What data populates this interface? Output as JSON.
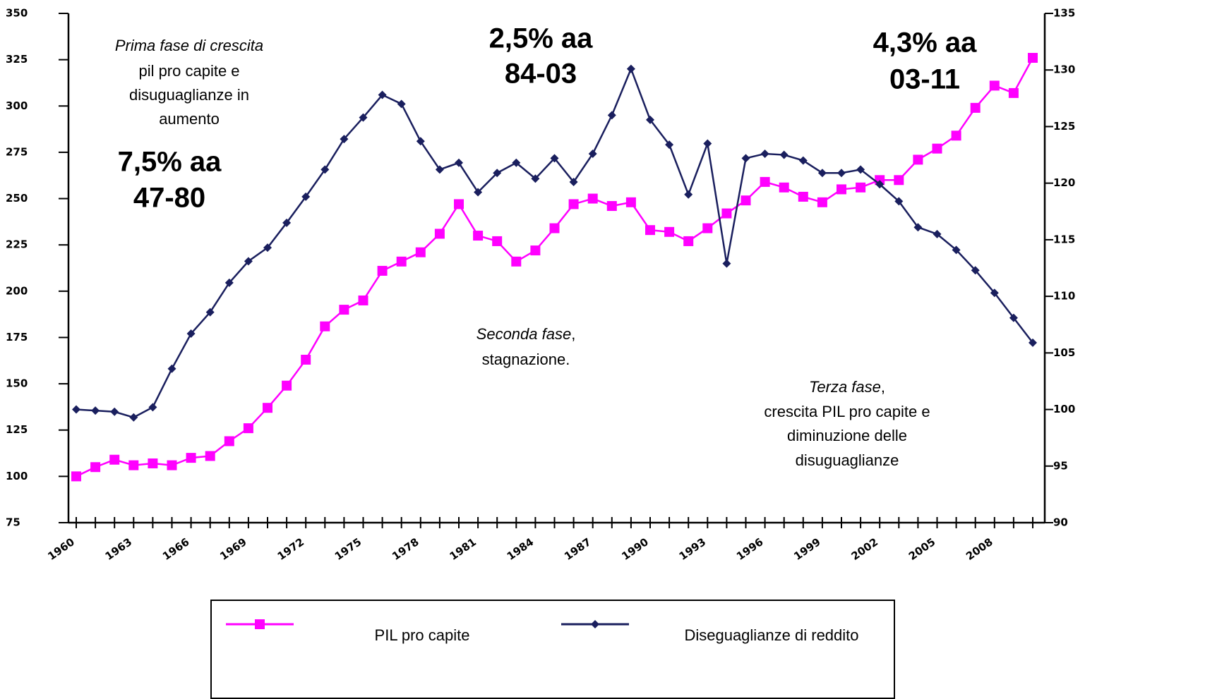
{
  "chart_data": {
    "type": "line",
    "categories": [
      "1960",
      null,
      null,
      "1963",
      null,
      null,
      "1966",
      null,
      null,
      "1969",
      null,
      null,
      "1972",
      null,
      null,
      "1975",
      null,
      null,
      "1978",
      null,
      null,
      "1981",
      null,
      null,
      "1984",
      null,
      null,
      "1987",
      null,
      null,
      "1990",
      null,
      null,
      "1993",
      null,
      null,
      "1996",
      null,
      null,
      "1999",
      null,
      null,
      "2002",
      null,
      null,
      "2005",
      null,
      null,
      "2008",
      null,
      null
    ],
    "series": [
      {
        "name": "PIL pro capite",
        "color": "#ff00ff",
        "marker": "square",
        "values": [
          100,
          105,
          109,
          106,
          107,
          106,
          110,
          111,
          119,
          126,
          137,
          149,
          163,
          181,
          190,
          195,
          211,
          216,
          221,
          231,
          247,
          230,
          227,
          216,
          222,
          234,
          247,
          250,
          246,
          248,
          233,
          232,
          227,
          234,
          242,
          249,
          259,
          256,
          251,
          248,
          255,
          256,
          260,
          260,
          271,
          277,
          284,
          299,
          311,
          307,
          326
        ]
      },
      {
        "name": "Diseguaglianze di reddito",
        "color": "#1a1f5e",
        "marker": "diamond",
        "axis": "y2",
        "values": [
          100.0,
          99.9,
          99.8,
          99.3,
          100.2,
          103.6,
          106.7,
          108.6,
          111.2,
          113.1,
          114.3,
          116.5,
          118.8,
          121.2,
          123.9,
          125.8,
          127.8,
          127.0,
          123.7,
          121.2,
          121.8,
          119.2,
          120.9,
          121.8,
          120.4,
          122.2,
          120.1,
          122.6,
          126.0,
          130.1,
          125.6,
          123.4,
          119.0,
          123.5,
          112.9,
          122.2,
          122.6,
          122.5,
          122.0,
          120.9,
          120.9,
          121.2,
          119.9,
          118.4,
          116.1,
          115.5,
          114.1,
          112.3,
          110.3,
          108.1,
          105.9
        ]
      }
    ],
    "ylim": [
      75,
      350
    ],
    "yticks": [
      75,
      100,
      125,
      150,
      175,
      200,
      225,
      250,
      275,
      300,
      325,
      350
    ],
    "y2lim": [
      90,
      135
    ],
    "y2ticks": [
      90,
      95,
      100,
      105,
      110,
      115,
      120,
      125,
      130,
      135
    ],
    "annotations": {
      "phase1": [
        "Prima fase di crescita",
        "pil pro capite e",
        "disuguaglianze in",
        "aumento"
      ],
      "rate1": [
        "7,5% aa",
        "47-80"
      ],
      "rate2": [
        "2,5% aa",
        "84-03"
      ],
      "rate3": [
        "4,3% aa",
        "03-11"
      ],
      "phase2": [
        "Seconda fase",
        ",",
        "stagnazione."
      ],
      "phase3": [
        "Terza fase",
        ",",
        "crescita PIL pro capite e",
        "diminuzione delle",
        "disuguaglianze"
      ]
    }
  }
}
